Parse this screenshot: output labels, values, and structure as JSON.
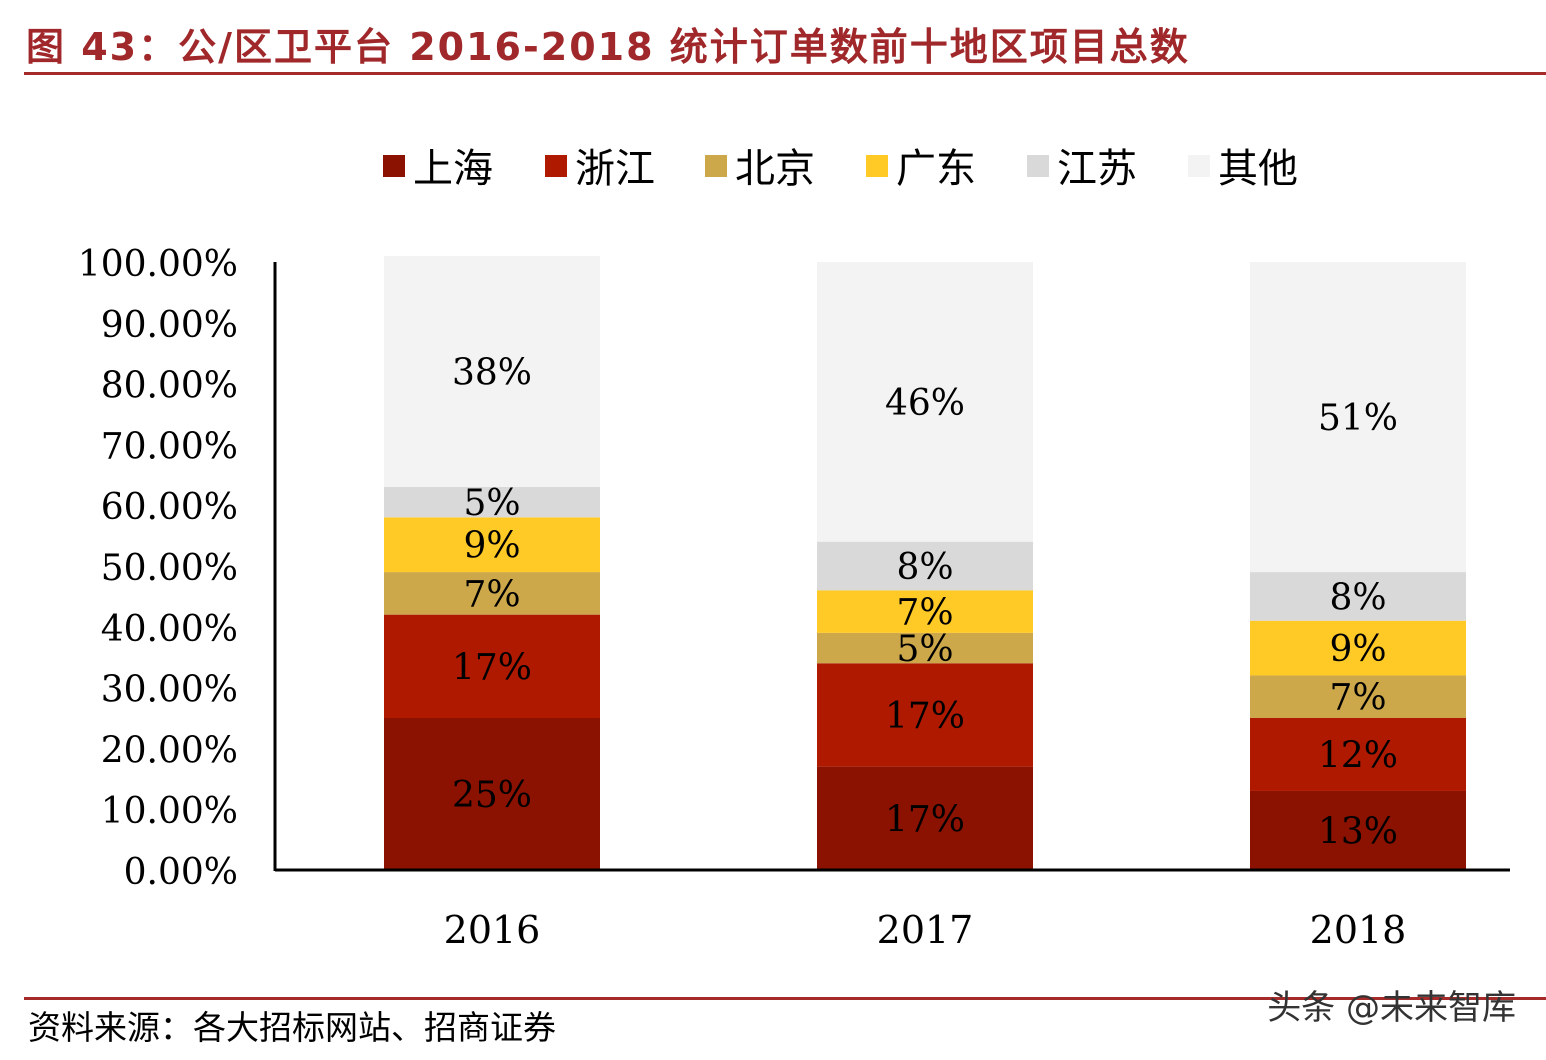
{
  "figure": {
    "title": "图 43：公/区卫平台 2016-2018 统计订单数前十地区项目总数",
    "source": "资料来源：各大招标网站、招商证券",
    "watermark": "头条 @未来智库"
  },
  "colors": {
    "accent": "#A52A2A",
    "title_text": "#A0282A",
    "axis": "#000000"
  },
  "chart_data": {
    "type": "bar",
    "stacked": true,
    "categories": [
      "2016",
      "2017",
      "2018"
    ],
    "series": [
      {
        "name": "上海",
        "color": "#8B1100",
        "values": [
          25,
          17,
          13
        ],
        "labels": [
          "25%",
          "17%",
          "13%"
        ]
      },
      {
        "name": "浙江",
        "color": "#AE1900",
        "values": [
          17,
          17,
          12
        ],
        "labels": [
          "17%",
          "17%",
          "12%"
        ]
      },
      {
        "name": "北京",
        "color": "#CDA84A",
        "values": [
          7,
          5,
          7
        ],
        "labels": [
          "7%",
          "5%",
          "7%"
        ]
      },
      {
        "name": "广东",
        "color": "#FFC926",
        "values": [
          9,
          7,
          9
        ],
        "labels": [
          "9%",
          "7%",
          "9%"
        ]
      },
      {
        "name": "江苏",
        "color": "#D9D9D9",
        "values": [
          5,
          8,
          8
        ],
        "labels": [
          "5%",
          "8%",
          "8%"
        ]
      },
      {
        "name": "其他",
        "color": "#F3F3F3",
        "values": [
          38,
          46,
          51
        ],
        "labels": [
          "38%",
          "46%",
          "51%"
        ]
      }
    ],
    "ylim": [
      0,
      100
    ],
    "y_ticks": [
      "0.00%",
      "10.00%",
      "20.00%",
      "30.00%",
      "40.00%",
      "50.00%",
      "60.00%",
      "70.00%",
      "80.00%",
      "90.00%",
      "100.00%"
    ],
    "legend_position": "top",
    "grid": false
  }
}
